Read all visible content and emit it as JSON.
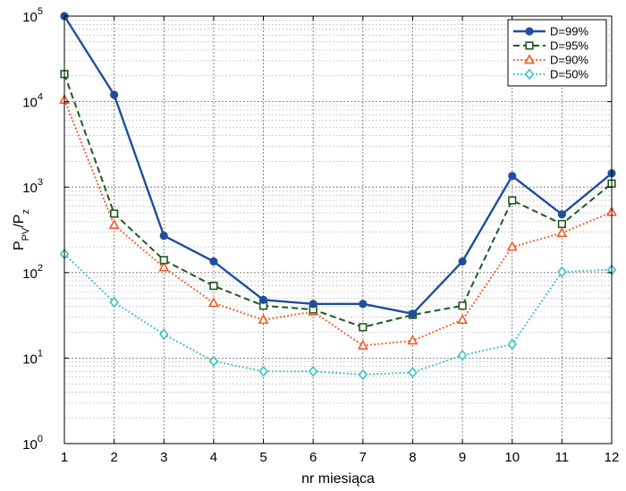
{
  "chart_data": {
    "type": "line",
    "title": "",
    "xlabel": "nr miesiąca",
    "ylabel_main": "P",
    "ylabel_sub1": "PV",
    "ylabel_mid": "/P",
    "ylabel_sub2": "z",
    "x": [
      1,
      2,
      3,
      4,
      5,
      6,
      7,
      8,
      9,
      10,
      11,
      12
    ],
    "xlim": [
      1,
      12
    ],
    "ylim": [
      1,
      100000
    ],
    "yscale": "log",
    "grid": true,
    "legend_position": "top-right",
    "x_tick_labels": [
      "1",
      "2",
      "3",
      "4",
      "5",
      "6",
      "7",
      "8",
      "9",
      "10",
      "11",
      "12"
    ],
    "y_ticks": [
      {
        "value": 1,
        "base": "10",
        "exp": "0"
      },
      {
        "value": 10,
        "base": "10",
        "exp": "1"
      },
      {
        "value": 100,
        "base": "10",
        "exp": "2"
      },
      {
        "value": 1000,
        "base": "10",
        "exp": "3"
      },
      {
        "value": 10000,
        "base": "10",
        "exp": "4"
      },
      {
        "value": 100000,
        "base": "10",
        "exp": "5"
      }
    ],
    "series": [
      {
        "name": "D=99%",
        "color": "#1f4e9c",
        "dash": "solid",
        "marker": "circle",
        "values": [
          100000,
          12000,
          270,
          135,
          48,
          43,
          43,
          33,
          135,
          1350,
          480,
          1450
        ]
      },
      {
        "name": "D=95%",
        "color": "#1e5a1e",
        "dash": "dashed",
        "marker": "square",
        "values": [
          21000,
          490,
          140,
          70,
          41,
          37,
          23,
          32,
          41,
          700,
          370,
          1100
        ]
      },
      {
        "name": "D=90%",
        "color": "#f05a28",
        "dash": "dotted",
        "marker": "triangle",
        "values": [
          10500,
          360,
          115,
          44,
          28,
          35,
          14,
          16,
          28,
          200,
          290,
          510
        ]
      },
      {
        "name": "D=50%",
        "color": "#3cc0c8",
        "dash": "dotted",
        "marker": "diamond",
        "values": [
          165,
          45,
          19,
          9.2,
          7,
          7,
          6.4,
          6.8,
          10.8,
          14.5,
          102,
          108
        ]
      }
    ]
  }
}
